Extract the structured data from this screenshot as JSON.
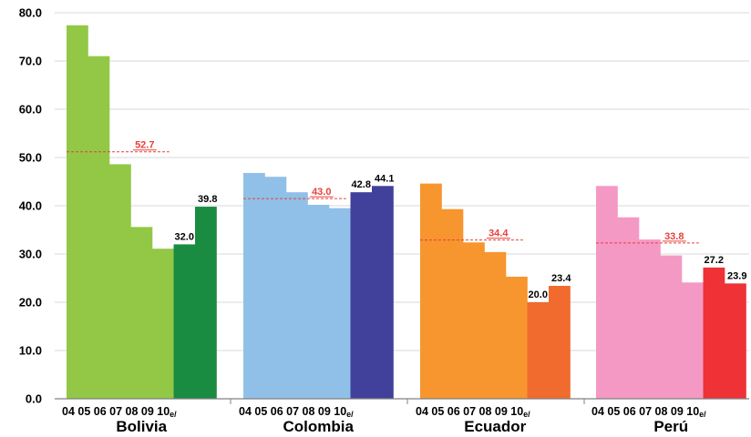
{
  "chart_data": {
    "type": "bar",
    "title": "",
    "xlabel": "",
    "ylabel": "",
    "ylim": [
      0,
      80
    ],
    "yticks": [
      "0.0",
      "10.0",
      "20.0",
      "30.0",
      "40.0",
      "50.0",
      "60.0",
      "70.0",
      "80.0"
    ],
    "grid": true,
    "years": [
      "04",
      "05",
      "06",
      "07",
      "08",
      "09",
      "10"
    ],
    "year_suffix": "e/",
    "groups": [
      {
        "name": "Bolivia",
        "values": [
          77.4,
          71.0,
          48.6,
          35.6,
          31.1,
          32.0,
          39.8
        ],
        "value_labels": [
          "",
          "",
          "",
          "",
          "",
          "32.0",
          "39.8"
        ],
        "average": 52.7,
        "average_label": "52.7",
        "color_light": "#92c845",
        "color_dark": "#1a8c41"
      },
      {
        "name": "Colombia",
        "values": [
          46.8,
          46.0,
          42.8,
          40.2,
          39.5,
          42.8,
          44.1
        ],
        "value_labels": [
          "",
          "",
          "",
          "",
          "",
          "42.8",
          "44.1"
        ],
        "average": 43.0,
        "average_label": "43.0",
        "color_light": "#90c0e8",
        "color_dark": "#41419b"
      },
      {
        "name": "Ecuador",
        "values": [
          44.6,
          39.3,
          32.4,
          30.4,
          25.3,
          20.0,
          23.4
        ],
        "value_labels": [
          "",
          "",
          "",
          "",
          "",
          "20.0",
          "23.4"
        ],
        "average": 34.4,
        "average_label": "34.4",
        "color_light": "#f7952e",
        "color_dark": "#f06b2d"
      },
      {
        "name": "Perú",
        "values": [
          44.1,
          37.6,
          33.0,
          29.7,
          24.1,
          27.2,
          23.9
        ],
        "value_labels": [
          "",
          "",
          "",
          "",
          "",
          "27.2",
          "23.9"
        ],
        "average": 33.8,
        "average_label": "33.8",
        "color_light": "#f499c4",
        "color_dark": "#ee3236"
      }
    ],
    "average_line_color": "#e8403a"
  }
}
